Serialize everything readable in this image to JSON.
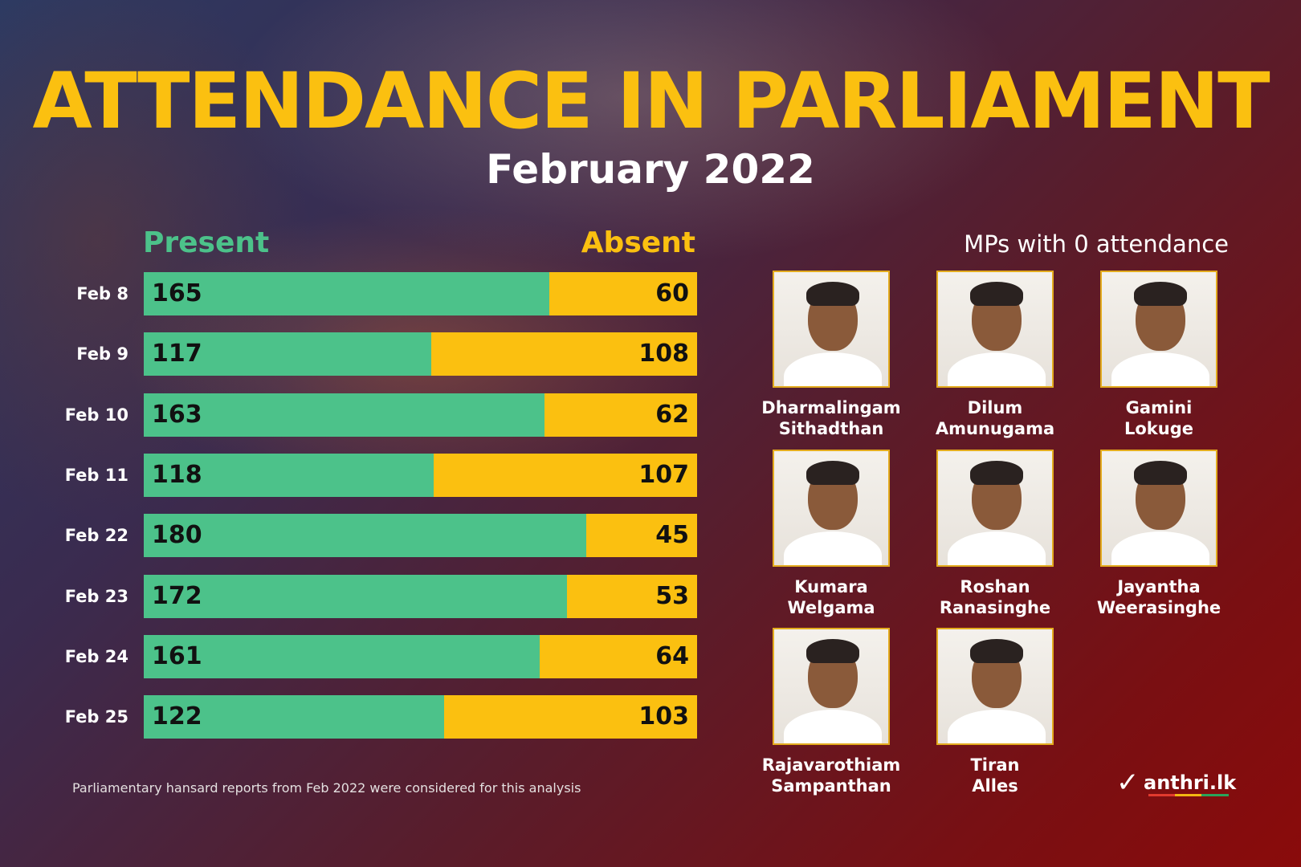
{
  "title": "ATTENDANCE IN PARLIAMENT",
  "subtitle": "February 2022",
  "legend": {
    "present": "Present",
    "absent": "Absent"
  },
  "chart_data": {
    "type": "bar",
    "orientation": "horizontal",
    "stacked": true,
    "categories": [
      "Feb 8",
      "Feb 9",
      "Feb 10",
      "Feb 11",
      "Feb 22",
      "Feb 23",
      "Feb 24",
      "Feb 25"
    ],
    "series": [
      {
        "name": "Present",
        "values": [
          165,
          117,
          163,
          118,
          180,
          172,
          161,
          122
        ],
        "color": "#4cc28a"
      },
      {
        "name": "Absent",
        "values": [
          60,
          108,
          62,
          107,
          45,
          53,
          64,
          103
        ],
        "color": "#fbc010"
      }
    ],
    "xlim": [
      0,
      225
    ],
    "grid": false,
    "legend_position": "top"
  },
  "mps": {
    "heading": "MPs with 0 attendance",
    "people": [
      {
        "first": "Dharmalingam",
        "last": "Sithadthan"
      },
      {
        "first": "Dilum",
        "last": "Amunugama"
      },
      {
        "first": "Gamini",
        "last": "Lokuge"
      },
      {
        "first": "Kumara",
        "last": "Welgama"
      },
      {
        "first": "Roshan",
        "last": "Ranasinghe"
      },
      {
        "first": "Jayantha",
        "last": "Weerasinghe"
      },
      {
        "first": "Rajavarothiam",
        "last": "Sampanthan"
      },
      {
        "first": "Tiran",
        "last": "Alles"
      }
    ]
  },
  "footnote": "Parliamentary hansard reports from Feb 2022 were considered for this analysis",
  "logo": {
    "mark": "✓",
    "text": "anthri.lk"
  }
}
